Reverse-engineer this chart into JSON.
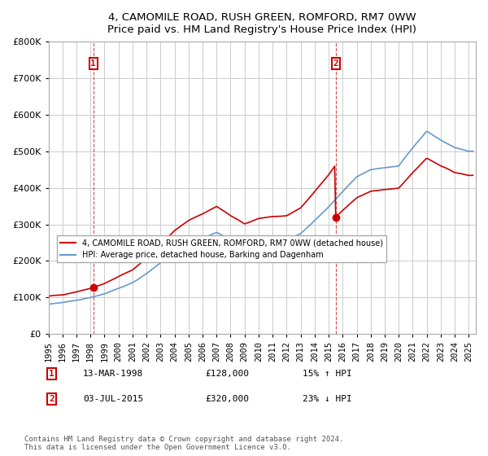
{
  "title": "4, CAMOMILE ROAD, RUSH GREEN, ROMFORD, RM7 0WW",
  "subtitle": "Price paid vs. HM Land Registry's House Price Index (HPI)",
  "ylabel": "",
  "ylim": [
    0,
    800000
  ],
  "yticks": [
    0,
    100000,
    200000,
    300000,
    400000,
    500000,
    600000,
    700000,
    800000
  ],
  "xlim_start": 1995.0,
  "xlim_end": 2025.5,
  "legend_line1": "4, CAMOMILE ROAD, RUSH GREEN, ROMFORD, RM7 0WW (detached house)",
  "legend_line2": "HPI: Average price, detached house, Barking and Dagenham",
  "sale1_label": "1",
  "sale1_date": "13-MAR-1998",
  "sale1_price": "£128,000",
  "sale1_hpi": "15% ↑ HPI",
  "sale1_year": 1998.2,
  "sale1_value": 128000,
  "sale2_label": "2",
  "sale2_date": "03-JUL-2015",
  "sale2_price": "£320,000",
  "sale2_hpi": "23% ↓ HPI",
  "sale2_year": 2015.5,
  "sale2_value": 320000,
  "red_color": "#cc0000",
  "blue_color": "#6699cc",
  "background_color": "#ffffff",
  "grid_color": "#cccccc",
  "footer": "Contains HM Land Registry data © Crown copyright and database right 2024.\nThis data is licensed under the Open Government Licence v3.0."
}
